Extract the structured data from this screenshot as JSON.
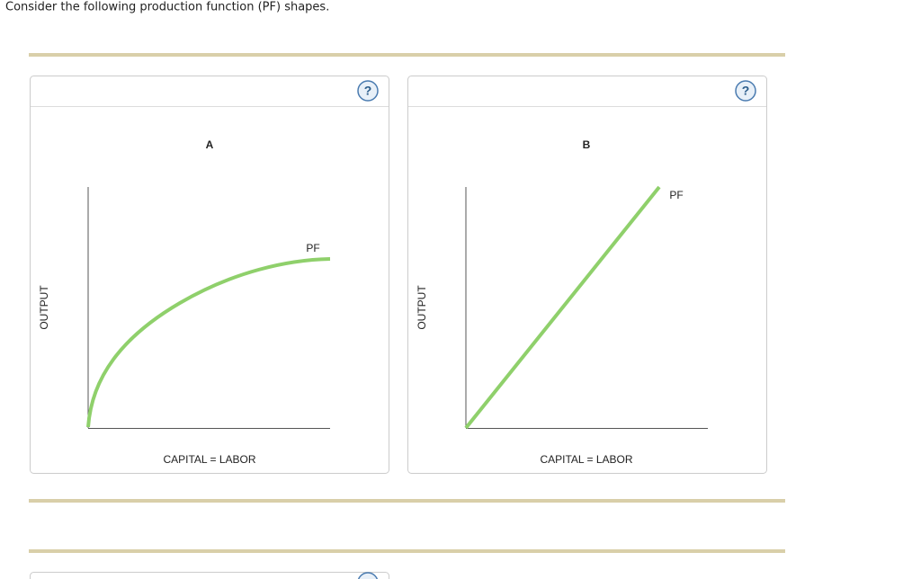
{
  "header": {
    "text": "Consider the following production function (PF) shapes."
  },
  "panels": [
    {
      "help": "?",
      "title": "A",
      "curve_label": "PF",
      "x_axis_label": "CAPITAL = LABOR",
      "y_axis_label": "OUTPUT"
    },
    {
      "help": "?",
      "title": "B",
      "curve_label": "PF",
      "x_axis_label": "CAPITAL = LABOR",
      "y_axis_label": "OUTPUT"
    }
  ]
}
